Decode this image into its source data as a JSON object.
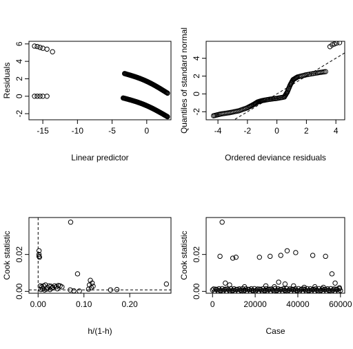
{
  "chart_data": [
    {
      "type": "scatter",
      "title": "",
      "xlabel": "Linear predictor",
      "ylabel": "Residuals",
      "xlim": [
        -17,
        3.5
      ],
      "ylim": [
        -2.7,
        6.3
      ],
      "xticks": [
        -15,
        -10,
        -5,
        0
      ],
      "yticks": [
        -2,
        0,
        2,
        4,
        6
      ],
      "grid": false,
      "clusters": [
        {
          "points": [
            [
              -16.2,
              5.75
            ],
            [
              -15.8,
              5.7
            ],
            [
              -15.4,
              5.6
            ],
            [
              -15.0,
              5.5
            ],
            [
              -14.4,
              5.4
            ],
            [
              -13.6,
              5.1
            ]
          ]
        },
        {
          "points": [
            [
              -16.2,
              0.0
            ],
            [
              -15.8,
              0.0
            ],
            [
              -15.4,
              0.0
            ],
            [
              -15.0,
              0.0
            ],
            [
              -14.4,
              0.0
            ]
          ]
        },
        {
          "curve": {
            "x0": -3.2,
            "x1": 3.0,
            "y0": 2.6,
            "y1": 0.35,
            "n": 70
          }
        },
        {
          "curve": {
            "x0": -3.4,
            "x1": 3.0,
            "y0": -0.2,
            "y1": -2.35,
            "n": 80
          }
        }
      ]
    },
    {
      "type": "scatter",
      "title": "",
      "xlabel": "Ordered deviance residuals",
      "ylabel": "Quantiles of standard normal",
      "xlim": [
        -4.8,
        4.6
      ],
      "ylim": [
        -2.9,
        5.9
      ],
      "xticks": [
        -4,
        -2,
        0,
        2,
        4
      ],
      "yticks": [
        -2,
        0,
        2,
        4
      ],
      "grid": false,
      "reference_line": {
        "slope": 1,
        "intercept": 0,
        "style": "dashed"
      },
      "segments": [
        [
          -4.3,
          -2.45
        ],
        [
          -3.8,
          -2.25
        ],
        [
          -3.2,
          -2.1
        ],
        [
          -2.6,
          -1.9
        ],
        [
          -2.0,
          -1.55
        ],
        [
          -1.6,
          -1.2
        ],
        [
          -1.3,
          -0.9
        ],
        [
          -1.0,
          -0.75
        ],
        [
          -0.5,
          -0.6
        ],
        [
          0.0,
          -0.5
        ],
        [
          0.5,
          -0.35
        ],
        [
          0.7,
          0.2
        ],
        [
          0.9,
          1.0
        ],
        [
          1.1,
          1.6
        ],
        [
          1.4,
          1.9
        ],
        [
          2.0,
          2.15
        ],
        [
          2.7,
          2.35
        ],
        [
          3.3,
          2.5
        ]
      ],
      "outliers": [
        [
          3.6,
          5.3
        ],
        [
          3.75,
          5.5
        ],
        [
          3.9,
          5.6
        ],
        [
          4.05,
          5.7
        ],
        [
          4.25,
          5.75
        ]
      ]
    },
    {
      "type": "scatter",
      "title": "",
      "xlabel": "h/(1-h)",
      "ylabel": "Cook statistic",
      "xlim": [
        -0.02,
        0.29
      ],
      "ylim": [
        -0.001,
        0.04
      ],
      "xticks": [
        0.0,
        0.1,
        0.2
      ],
      "xticklabels": [
        "0.00",
        "0.10",
        "0.20"
      ],
      "yticks": [
        0.0,
        0.02
      ],
      "yticklabels": [
        "0.00",
        "0.02"
      ],
      "grid": false,
      "reference_lines": [
        {
          "orient": "vertical",
          "value": 0.0,
          "style": "dashed"
        },
        {
          "orient": "horizontal",
          "value": 0.0008,
          "style": "dashed"
        }
      ],
      "points": [
        [
          0.002,
          0.022
        ],
        [
          0.002,
          0.02
        ],
        [
          0.002,
          0.019
        ],
        [
          0.003,
          0.0185
        ],
        [
          0.005,
          0.003
        ],
        [
          0.008,
          0.0025
        ],
        [
          0.012,
          0.003
        ],
        [
          0.016,
          0.0035
        ],
        [
          0.02,
          0.002
        ],
        [
          0.024,
          0.003
        ],
        [
          0.028,
          0.0028
        ],
        [
          0.032,
          0.0022
        ],
        [
          0.036,
          0.003
        ],
        [
          0.04,
          0.0025
        ],
        [
          0.044,
          0.0032
        ],
        [
          0.048,
          0.003
        ],
        [
          0.052,
          0.0024
        ],
        [
          0.01,
          0.0015
        ],
        [
          0.018,
          0.0012
        ],
        [
          0.03,
          0.0018
        ],
        [
          0.042,
          0.0014
        ],
        [
          0.006,
          0.001
        ],
        [
          0.014,
          0.0008
        ],
        [
          0.026,
          0.001
        ],
        [
          0.071,
          0.0375
        ],
        [
          0.086,
          0.0095
        ],
        [
          0.07,
          0.0008
        ],
        [
          0.078,
          0.0003
        ],
        [
          0.09,
          0.0002
        ],
        [
          0.114,
          0.006
        ],
        [
          0.118,
          0.0045
        ],
        [
          0.112,
          0.0035
        ],
        [
          0.12,
          0.0028
        ],
        [
          0.116,
          0.002
        ],
        [
          0.11,
          0.0012
        ],
        [
          0.158,
          0.0008
        ],
        [
          0.172,
          0.001
        ],
        [
          0.28,
          0.004
        ]
      ]
    },
    {
      "type": "scatter",
      "title": "",
      "xlabel": "Case",
      "ylabel": "Cook statistic",
      "xlim": [
        -3000,
        62000
      ],
      "ylim": [
        -0.001,
        0.04
      ],
      "xticks": [
        0,
        20000,
        40000,
        60000
      ],
      "yticks": [
        0.0,
        0.02
      ],
      "yticklabels": [
        "0.00",
        "0.02"
      ],
      "grid": false,
      "points": [
        [
          3500,
          0.019
        ],
        [
          4500,
          0.0375
        ],
        [
          9500,
          0.018
        ],
        [
          11000,
          0.0185
        ],
        [
          22000,
          0.0185
        ],
        [
          27000,
          0.019
        ],
        [
          32000,
          0.0195
        ],
        [
          35000,
          0.022
        ],
        [
          39000,
          0.021
        ],
        [
          47000,
          0.0195
        ],
        [
          53000,
          0.019
        ],
        [
          56000,
          0.0095
        ],
        [
          57500,
          0.0045
        ],
        [
          31000,
          0.005
        ],
        [
          34000,
          0.004
        ],
        [
          6000,
          0.0045
        ],
        [
          8000,
          0.0035
        ],
        [
          15000,
          0.0025
        ],
        [
          25000,
          0.003
        ],
        [
          29000,
          0.0025
        ],
        [
          38000,
          0.003
        ],
        [
          43000,
          0.0022
        ],
        [
          48000,
          0.0025
        ],
        [
          52000,
          0.0022
        ],
        [
          59500,
          0.002
        ]
      ],
      "baseline_band": {
        "x0": 0,
        "x1": 60000,
        "y0": 0.0,
        "y1": 0.0015,
        "n": 120
      }
    }
  ]
}
